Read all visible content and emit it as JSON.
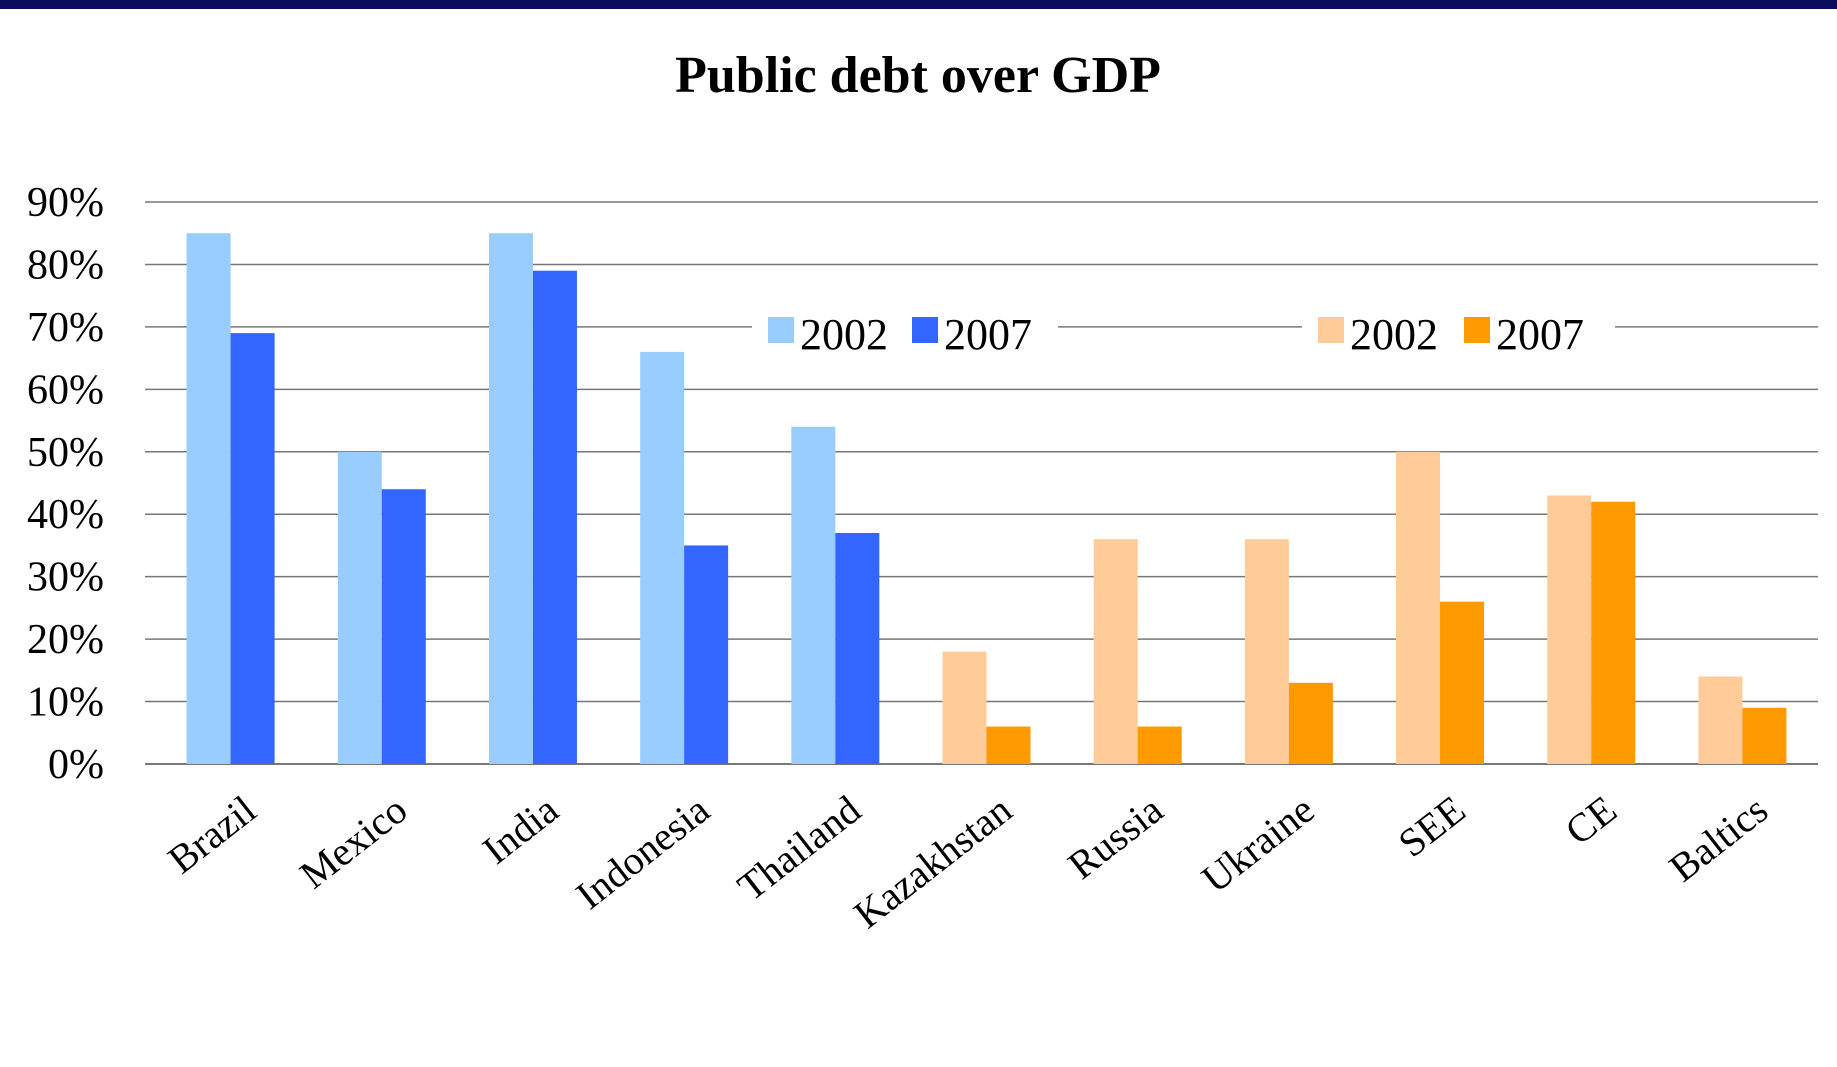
{
  "chart_data": {
    "type": "bar",
    "title": "Public debt over GDP",
    "xlabel": "",
    "ylabel": "",
    "ylim": [
      0,
      90
    ],
    "yticks": [
      "0%",
      "10%",
      "20%",
      "30%",
      "40%",
      "50%",
      "60%",
      "70%",
      "80%",
      "90%"
    ],
    "grid": true,
    "legend_placement": "top-center",
    "categories": [
      "Brazil",
      "Mexico",
      "India",
      "Indonesia",
      "Thailand",
      "Kazakhstan",
      "Russia",
      "Ukraine",
      "SEE",
      "CE",
      "Baltics"
    ],
    "groups": [
      {
        "categories": [
          "Brazil",
          "Mexico",
          "India",
          "Indonesia",
          "Thailand"
        ],
        "series": [
          {
            "name": "2002",
            "color": "#99ccff",
            "values": [
              85,
              50,
              85,
              66,
              54
            ]
          },
          {
            "name": "2007",
            "color": "#3366ff",
            "values": [
              69,
              44,
              79,
              35,
              37
            ]
          }
        ]
      },
      {
        "categories": [
          "Kazakhstan",
          "Russia",
          "Ukraine",
          "SEE",
          "CE",
          "Baltics"
        ],
        "series": [
          {
            "name": "2002",
            "color": "#ffcc99",
            "values": [
              18,
              36,
              36,
              50,
              43,
              14
            ]
          },
          {
            "name": "2007",
            "color": "#ff9900",
            "values": [
              6,
              6,
              13,
              26,
              42,
              9
            ]
          }
        ]
      }
    ]
  }
}
